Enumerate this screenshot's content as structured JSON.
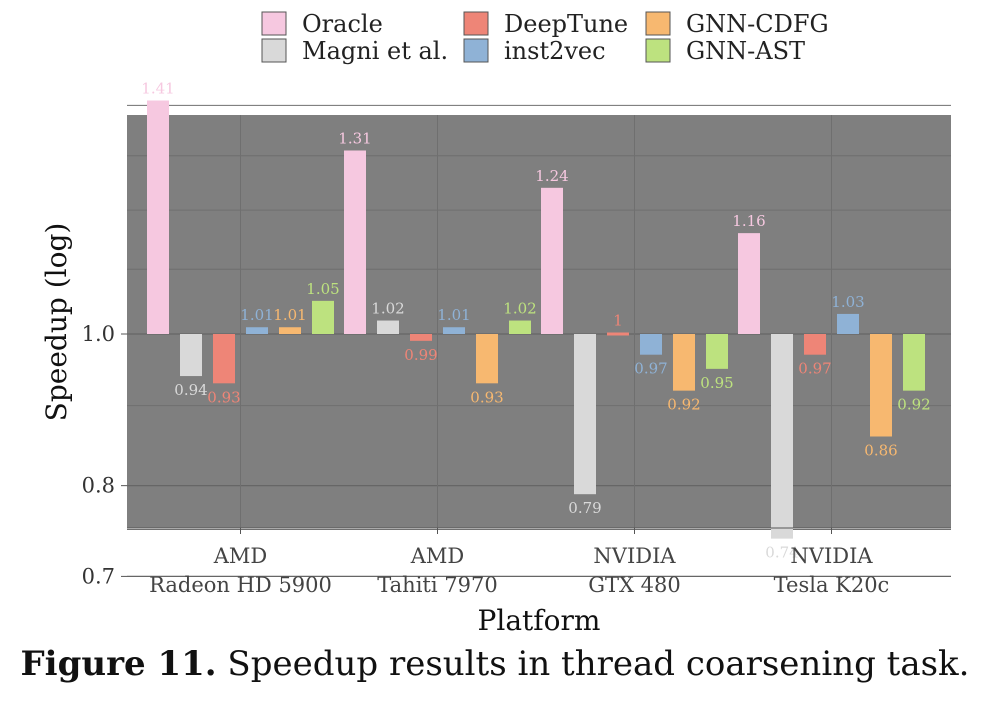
{
  "caption": {
    "number": "Figure 11.",
    "text": "Speedup results in thread coarsening task."
  },
  "chart_data": {
    "type": "bar",
    "scale": "log",
    "xlabel": "Platform",
    "ylabel": "Speedup (log)",
    "ylim": [
      0.7,
      1.5
    ],
    "yticks": [
      0.7,
      0.8,
      1.0
    ],
    "ytick_labels": [
      "0.7",
      "0.8",
      "1.0"
    ],
    "baseline": 1.0,
    "grid": true,
    "legend_position": "top",
    "categories": [
      [
        "AMD",
        "Radeon HD 5900"
      ],
      [
        "AMD",
        "Tahiti 7970"
      ],
      [
        "NVIDIA",
        "GTX 480"
      ],
      [
        "NVIDIA",
        "Tesla K20c"
      ]
    ],
    "series": [
      {
        "name": "Oracle",
        "color": "#f6c8e0",
        "values": [
          1.41,
          1.31,
          1.24,
          1.16
        ],
        "labels": [
          "1.41",
          "1.31",
          "1.24",
          "1.16"
        ]
      },
      {
        "name": "Magni et al.",
        "color": "#d9d9d9",
        "values": [
          0.94,
          1.02,
          0.79,
          0.74
        ],
        "labels": [
          "0.94",
          "1.02",
          "0.79",
          "0.74"
        ]
      },
      {
        "name": "DeepTune",
        "color": "#ee8577",
        "values": [
          0.93,
          0.99,
          1.0,
          0.97
        ],
        "labels": [
          "0.93",
          "0.99",
          "1",
          "0.97"
        ]
      },
      {
        "name": "inst2vec",
        "color": "#8fb2d6",
        "values": [
          1.01,
          1.01,
          0.97,
          1.03
        ],
        "labels": [
          "1.01",
          "1.01",
          "0.97",
          "1.03"
        ]
      },
      {
        "name": "GNN-CDFG",
        "color": "#f7b870",
        "values": [
          1.01,
          0.93,
          0.92,
          0.86
        ],
        "labels": [
          "1.01",
          "0.93",
          "0.92",
          "0.86"
        ]
      },
      {
        "name": "GNN-AST",
        "color": "#bde27f",
        "values": [
          1.05,
          1.02,
          0.95,
          0.92
        ],
        "labels": [
          "1.05",
          "1.02",
          "0.95",
          "0.92"
        ]
      }
    ]
  }
}
